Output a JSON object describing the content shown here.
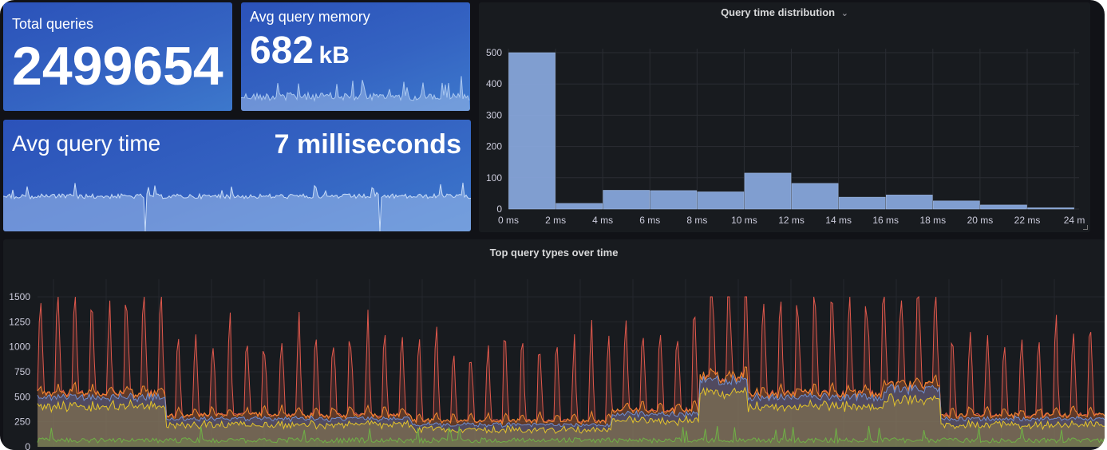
{
  "stats": {
    "total_queries": {
      "label": "Total queries",
      "value": "2499654"
    },
    "avg_memory": {
      "label": "Avg query memory",
      "value": "682",
      "unit": "kB"
    },
    "avg_time": {
      "label": "Avg query time",
      "value": "7 milliseconds"
    }
  },
  "colors": {
    "stat_bg": "#3463c2",
    "bar": "#8aa9df",
    "line_red": "#e0584c",
    "line_orange": "#f2882c",
    "line_blue": "#6e8fd1",
    "line_yellow": "#e4c42a",
    "line_green": "#6fb046"
  },
  "histogram": {
    "title": "Query time distribution",
    "chevron_icon": "chevron-down-icon",
    "chart_data": {
      "type": "bar",
      "categories": [
        "0 ms",
        "2 ms",
        "4 ms",
        "6 ms",
        "8 ms",
        "10 ms",
        "12 ms",
        "14 ms",
        "16 ms",
        "18 ms",
        "20 ms",
        "22 ms"
      ],
      "values": [
        500,
        18,
        60,
        59,
        55,
        115,
        82,
        38,
        45,
        26,
        13,
        4
      ],
      "x_ticks": [
        "0 ms",
        "2 ms",
        "4 ms",
        "6 ms",
        "8 ms",
        "10 ms",
        "12 ms",
        "14 ms",
        "16 ms",
        "18 ms",
        "20 ms",
        "22 ms",
        "24 m"
      ],
      "y_ticks": [
        "500",
        "400",
        "300",
        "200",
        "100",
        "0"
      ],
      "ylim": [
        0,
        500
      ],
      "grid": true
    }
  },
  "timeseries": {
    "title": "Top query types over time",
    "chart_data": {
      "type": "line",
      "y_ticks": [
        "1500",
        "1250",
        "1000",
        "750",
        "500",
        "250",
        "0"
      ],
      "ylim": [
        0,
        1500
      ],
      "grid": true,
      "series_count": 5
    }
  }
}
